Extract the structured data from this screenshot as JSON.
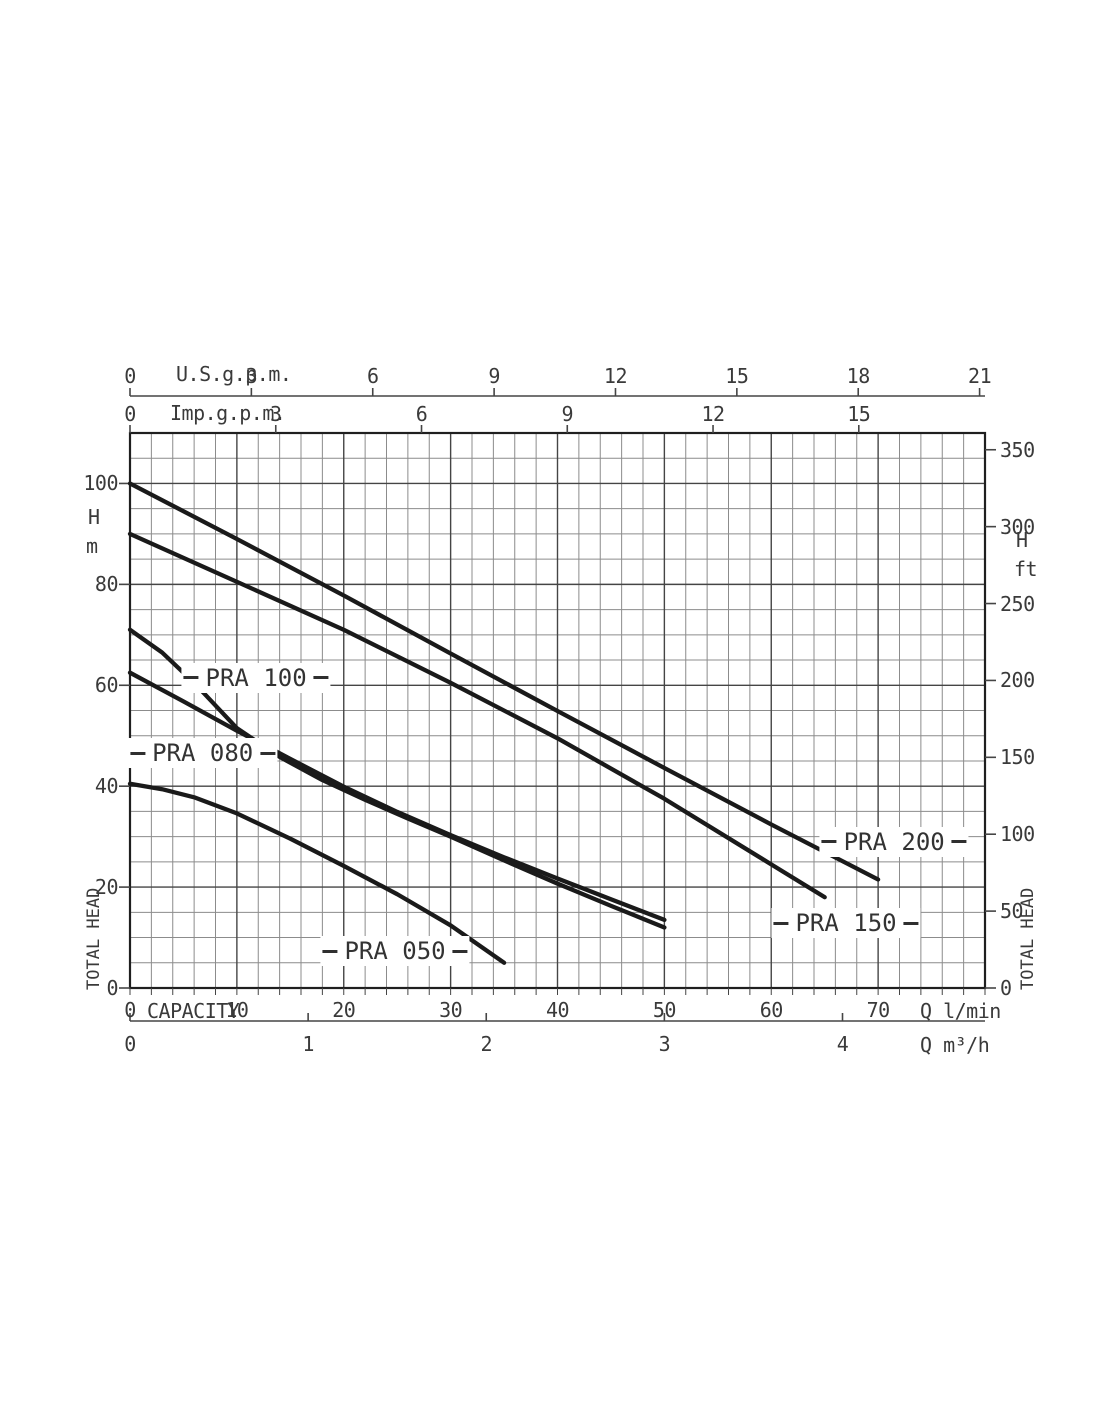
{
  "colors": {
    "background": "#ffffff",
    "curve": "#1a1a1a",
    "frame": "#1f1f1f",
    "grid_minor": "#8c8c8c",
    "grid_major": "#454545",
    "text": "#3a3a3a"
  },
  "chart_data": {
    "type": "line",
    "title": "",
    "description": "Pump performance curves: total head vs capacity for PRA series pumps",
    "x_range_lmin": [
      0,
      80
    ],
    "y_range_m": [
      0,
      110
    ],
    "grid": {
      "on": true,
      "minor_x_lmin": 2,
      "minor_y_m": 5,
      "major_x_lmin": 10,
      "major_y_m": 20
    },
    "axes": {
      "us_gpm": {
        "label": "U.S.g.p.m.",
        "ticks": [
          0,
          3,
          6,
          9,
          12,
          15,
          18,
          21
        ],
        "lmin_per_unit": 3.78541
      },
      "imp_gpm": {
        "label": "Imp.g.p.m.",
        "ticks": [
          0,
          3,
          6,
          9,
          12,
          15
        ],
        "lmin_per_unit": 4.54609
      },
      "lmin": {
        "label_left": "CAPACITY",
        "label_right": "Q l/min",
        "ticks": [
          0,
          10,
          20,
          30,
          40,
          50,
          60,
          70
        ],
        "lmin_per_unit": 1
      },
      "m3h": {
        "label_right": "Q m³/h",
        "ticks": [
          0,
          1,
          2,
          3,
          4
        ],
        "lmin_per_unit": 16.6667
      },
      "head_m": {
        "unit_line1": "H",
        "unit_line2": "m",
        "rotated_label": "TOTAL HEAD",
        "ticks": [
          0,
          20,
          40,
          60,
          80,
          100
        ],
        "m_per_unit": 1
      },
      "head_ft": {
        "unit_line1": "H",
        "unit_line2": "ft",
        "rotated_label": "TOTAL HEAD",
        "ticks": [
          0,
          50,
          100,
          150,
          200,
          250,
          300,
          350
        ],
        "m_per_unit": 0.3048
      }
    },
    "series": [
      {
        "name": "PRA 200",
        "label_at_q_h": [
          71.5,
          29.0
        ],
        "points": [
          [
            0,
            100
          ],
          [
            10,
            89
          ],
          [
            20,
            77.8
          ],
          [
            30,
            66.3
          ],
          [
            40,
            54.9
          ],
          [
            50,
            43.6
          ],
          [
            60,
            32.4
          ],
          [
            70,
            21.5
          ]
        ]
      },
      {
        "name": "PRA 150",
        "label_at_q_h": [
          67.0,
          12.8
        ],
        "points": [
          [
            0,
            90
          ],
          [
            10,
            80.5
          ],
          [
            20,
            71
          ],
          [
            30,
            60.5
          ],
          [
            40,
            49.5
          ],
          [
            50,
            37.5
          ],
          [
            60,
            24.5
          ],
          [
            65,
            18
          ]
        ]
      },
      {
        "name": "PRA 100",
        "label_at_q_h": [
          11.8,
          61.5
        ],
        "points": [
          [
            0,
            71
          ],
          [
            3,
            66.5
          ],
          [
            6,
            60.5
          ],
          [
            10,
            51.5
          ],
          [
            14,
            45.8
          ],
          [
            18,
            41.2
          ],
          [
            22,
            37.3
          ],
          [
            26,
            33.6
          ],
          [
            30,
            30
          ],
          [
            35,
            25.3
          ],
          [
            40,
            20.7
          ],
          [
            45,
            16.3
          ],
          [
            50,
            12
          ]
        ]
      },
      {
        "name": "PRA 080",
        "label_at_q_h": [
          6.8,
          46.5
        ],
        "points": [
          [
            0,
            62.5
          ],
          [
            5,
            56.8
          ],
          [
            10,
            51
          ],
          [
            15,
            45.4
          ],
          [
            20,
            39.9
          ],
          [
            25,
            34.9
          ],
          [
            30,
            30.3
          ],
          [
            35,
            25.9
          ],
          [
            40,
            21.7
          ],
          [
            45,
            17.6
          ],
          [
            50,
            13.5
          ]
        ]
      },
      {
        "name": "PRA 050",
        "label_at_q_h": [
          24.8,
          7.3
        ],
        "points": [
          [
            0,
            40.5
          ],
          [
            3,
            39.4
          ],
          [
            6,
            37.8
          ],
          [
            10,
            34.6
          ],
          [
            15,
            29.6
          ],
          [
            20,
            24.2
          ],
          [
            25,
            18.6
          ],
          [
            30,
            12.4
          ],
          [
            35,
            5
          ]
        ]
      }
    ]
  }
}
